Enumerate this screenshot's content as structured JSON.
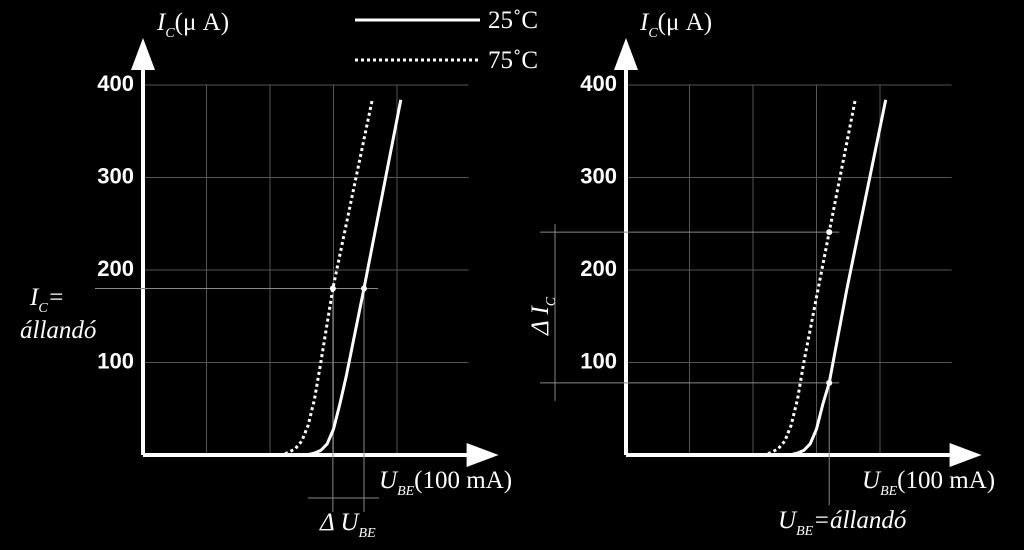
{
  "chart_data": [
    {
      "type": "line",
      "y_label": {
        "symbol": "I",
        "subscript": "C",
        "unit": "(μ A)"
      },
      "x_label": {
        "symbol": "U",
        "subscript": "BE",
        "unit": "(100 mA)"
      },
      "xlim": [
        0,
        5.6
      ],
      "ylim": [
        0,
        440
      ],
      "yticks": [
        100,
        200,
        300,
        400
      ],
      "xgrid": [
        1,
        2,
        3,
        4
      ],
      "grid": true,
      "legend": true,
      "series": [
        {
          "name": "25˚C",
          "color": "#ffffff",
          "style": "solid",
          "x": [
            2.45,
            2.6,
            2.7,
            2.8,
            2.9,
            3.0,
            3.1,
            3.2,
            3.48,
            4.06
          ],
          "values": [
            0,
            0.5,
            2,
            5,
            12,
            28,
            55,
            85,
            180,
            384
          ]
        },
        {
          "name": "75˚C",
          "color": "#ffffff",
          "style": "dotted",
          "x": [
            2.05,
            2.2,
            2.3,
            2.4,
            2.5,
            2.6,
            2.7,
            2.8,
            2.99,
            3.61
          ],
          "values": [
            0,
            0.5,
            3,
            7,
            15,
            32,
            60,
            100,
            180,
            384
          ]
        }
      ],
      "markers": [
        {
          "x": 2.99,
          "y": 180
        },
        {
          "x": 3.48,
          "y": 180
        }
      ],
      "delta_label": {
        "symbol": "Δ U",
        "subscript": "BE"
      },
      "constant_label": {
        "symbol": "I",
        "subscript": "C",
        "suffix": "=",
        "text": "állandó"
      }
    },
    {
      "type": "line",
      "y_label": {
        "symbol": "I",
        "subscript": "C",
        "unit": "(μ A)"
      },
      "x_label": {
        "symbol": "U",
        "subscript": "BE",
        "unit": "(100 mA)"
      },
      "xlim": [
        0,
        5.6
      ],
      "ylim": [
        0,
        440
      ],
      "yticks": [
        100,
        200,
        300,
        400
      ],
      "xgrid": [
        1,
        2,
        3,
        4
      ],
      "grid": true,
      "legend": false,
      "series": [
        {
          "color": "#ffffff",
          "style": "solid",
          "x": [
            2.45,
            2.6,
            2.7,
            2.8,
            2.9,
            3.0,
            3.1,
            3.2,
            3.48,
            4.09
          ],
          "values": [
            0,
            0.5,
            2,
            5,
            12,
            28,
            55,
            78,
            180,
            384
          ]
        },
        {
          "color": "#ffffff",
          "style": "dotted",
          "x": [
            2.05,
            2.2,
            2.3,
            2.4,
            2.5,
            2.6,
            2.7,
            2.8,
            3.2,
            3.61
          ],
          "values": [
            0,
            0.5,
            3,
            7,
            15,
            32,
            60,
            100,
            241,
            384
          ]
        }
      ],
      "markers": [
        {
          "x": 3.2,
          "y": 78
        },
        {
          "x": 3.2,
          "y": 241
        }
      ],
      "delta_label": {
        "symbol": "Δ I",
        "subscript": "C"
      },
      "constant_label": {
        "symbol": "U",
        "subscript": "BE",
        "suffix": "=állandó"
      }
    }
  ]
}
